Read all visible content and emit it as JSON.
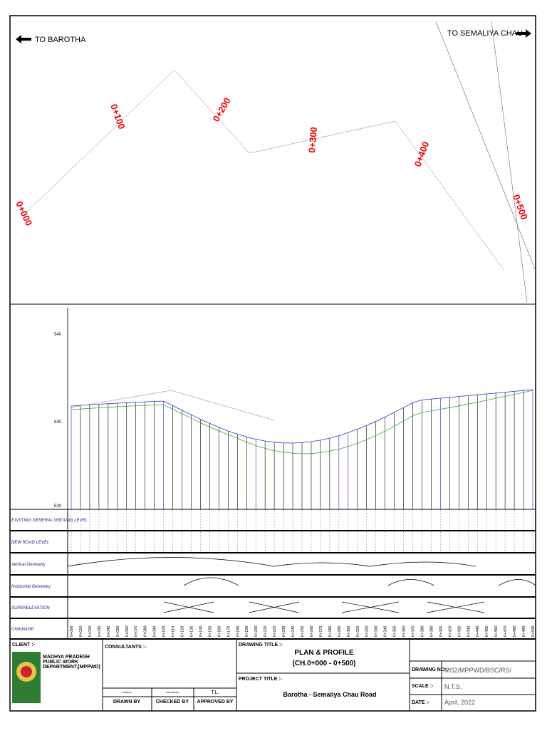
{
  "plan": {
    "left_direction": "TO BAROTHA",
    "right_direction": "TO SEMALIYA CHAU",
    "chainage_marks": [
      "0+000",
      "0+100",
      "0+200",
      "0+300",
      "0+400",
      "0+500"
    ]
  },
  "profile": {
    "level_labels": [
      "540",
      "530",
      "520"
    ]
  },
  "bands": {
    "rows": [
      "EXISTING GENERAL GROUND LEVEL",
      "NEW ROAD LEVEL",
      "Vertical Geometry",
      "Horizontal Geometry",
      "SUPERELEVATION",
      "CHAINAGE"
    ],
    "chainages": [
      "0+000",
      "0+010",
      "0+020",
      "0+030",
      "0+040",
      "0+050",
      "0+060",
      "0+070",
      "0+080",
      "0+090",
      "0+100",
      "0+110",
      "0+120",
      "0+130",
      "0+140",
      "0+150",
      "0+160",
      "0+170",
      "0+180",
      "0+190",
      "0+200",
      "0+210",
      "0+220",
      "0+230",
      "0+240",
      "0+250",
      "0+260",
      "0+270",
      "0+280",
      "0+290",
      "0+300",
      "0+310",
      "0+320",
      "0+330",
      "0+340",
      "0+350",
      "0+360",
      "0+370",
      "0+380",
      "0+390",
      "0+400",
      "0+410",
      "0+420",
      "0+430",
      "0+440",
      "0+450",
      "0+460",
      "0+470",
      "0+480",
      "0+490",
      "0+500"
    ]
  },
  "title_block": {
    "client_label": "CLIENT :-",
    "client": "MADHYA PRADESH PUBLIC WORK DEPARTMENT,(MPPWD)",
    "consultants_label": "CONSULTANTS :-",
    "drawing_title_label": "DRAWING TITLE :-",
    "drawing_title": "PLAN & PROFILE",
    "drawing_subtitle": "(CH.0+000 - 0+500)",
    "project_title_label": "PROJECT TITLE :-",
    "project_title": "Barotha - Semaliya Chau Road",
    "drawing_no_label": "DRAWING NO :-",
    "drawing_no": "MS2/MPPWD/BSC/RS/",
    "scale_label": "SCALE :-",
    "scale": "N.T.S.",
    "date_label": "DATE :-",
    "date": "April, 2022",
    "signatures": [
      "------",
      "--------",
      "T.L."
    ],
    "roles": [
      "DRAWN BY",
      "CHECKED BY",
      "APPROVED BY"
    ]
  }
}
